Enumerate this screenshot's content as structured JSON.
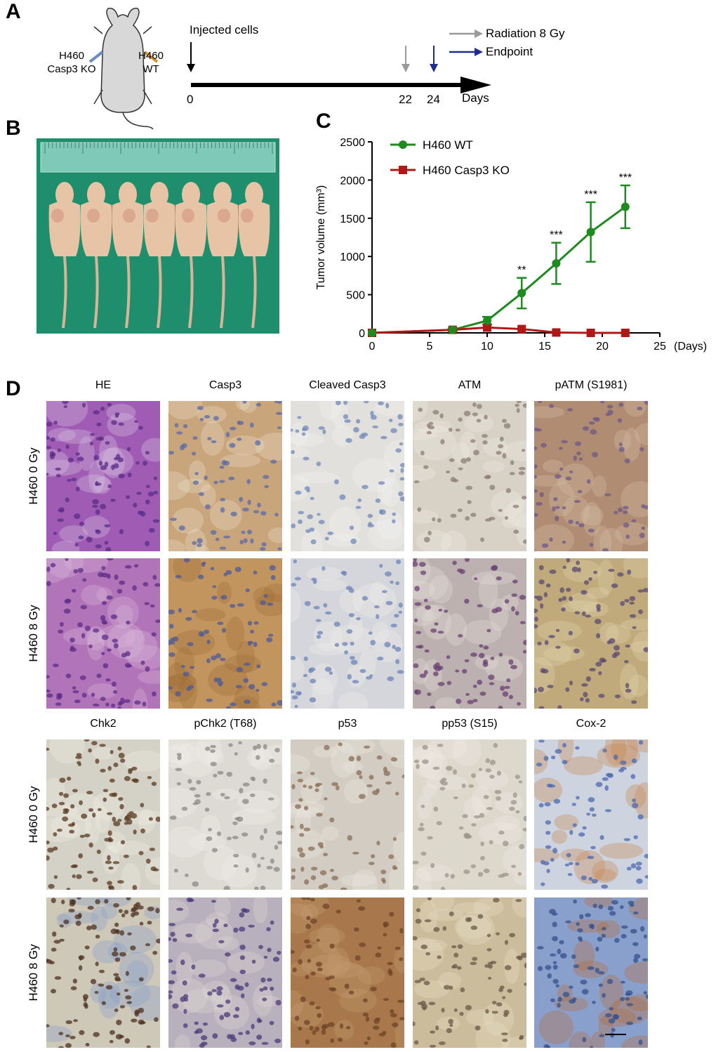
{
  "panels": {
    "a": {
      "letter": "A"
    },
    "b": {
      "letter": "B"
    },
    "c": {
      "letter": "C"
    },
    "d": {
      "letter": "D"
    }
  },
  "timeline": {
    "injected_label": "Injected cells",
    "ticks": [
      "0",
      "22",
      "24"
    ],
    "days_label": "Days",
    "legend": [
      {
        "label": "Radiation 8 Gy",
        "color": "#9a9a9a"
      },
      {
        "label": "Endpoint",
        "color": "#1f2e8c"
      }
    ],
    "mouse_left_label": [
      "H460",
      "Casp3 KO"
    ],
    "mouse_right_label": [
      "H460",
      "WT"
    ]
  },
  "photo_b": {
    "ruler_color": "#7fc9b9",
    "background_color": "#1f8e6c",
    "mouse_color": "#e8c4a6",
    "mouse_count": 7
  },
  "chart_data": {
    "type": "line",
    "xlabel": "(Days)",
    "ylabel": "Tumor volume (mm³)",
    "xlim": [
      0,
      25
    ],
    "ylim": [
      0,
      2500
    ],
    "xticks": [
      "0",
      "5",
      "10",
      "15",
      "20",
      "25"
    ],
    "yticks": [
      "0",
      "500",
      "1000",
      "1500",
      "2000",
      "2500"
    ],
    "legend_position": "top-left",
    "series": [
      {
        "name": "H460 WT",
        "color": "#1f8a1f",
        "marker": "circle",
        "x": [
          0,
          7,
          10,
          13,
          16,
          19,
          22
        ],
        "y": [
          0,
          40,
          160,
          520,
          910,
          1320,
          1650
        ],
        "err": [
          0,
          20,
          50,
          200,
          270,
          390,
          280
        ]
      },
      {
        "name": "H460 Casp3 KO",
        "color": "#b01818",
        "marker": "square",
        "x": [
          0,
          7,
          10,
          13,
          16,
          19,
          22
        ],
        "y": [
          0,
          40,
          70,
          50,
          5,
          0,
          0
        ],
        "err": [
          0,
          0,
          0,
          0,
          0,
          0,
          0
        ]
      }
    ],
    "annotations": [
      {
        "x": 13,
        "text": "**"
      },
      {
        "x": 16,
        "text": "***"
      },
      {
        "x": 19,
        "text": "***"
      },
      {
        "x": 22,
        "text": "***"
      }
    ]
  },
  "histology": {
    "top": {
      "columns": [
        "HE",
        "Casp3",
        "Cleaved Casp3",
        "ATM",
        "pATM (S1981)"
      ],
      "rows": [
        "H460 0 Gy",
        "H460 8 Gy"
      ]
    },
    "bottom": {
      "columns": [
        "Chk2",
        "pChk2 (T68)",
        "p53",
        "pp53 (S15)",
        "Cox-2"
      ],
      "rows": [
        "H460 0 Gy",
        "H460 8 Gy"
      ]
    },
    "tiles": [
      {
        "bg": "#a05cb4",
        "nuc": "#5a2c88",
        "hi": "#d8c0e0",
        "density": 90
      },
      {
        "bg": "#c9a57c",
        "nuc": "#5a6aa8",
        "hi": "#e8dcc8",
        "density": 70
      },
      {
        "bg": "#e2e0dc",
        "nuc": "#7088b8",
        "hi": "#f2f2f0",
        "density": 70
      },
      {
        "bg": "#d8d2c6",
        "nuc": "#8c7c70",
        "hi": "#eeeae2",
        "density": 70
      },
      {
        "bg": "#b08c72",
        "nuc": "#6e5a8a",
        "hi": "#d4bca4",
        "density": 70
      },
      {
        "bg": "#b274b8",
        "nuc": "#5c2c88",
        "hi": "#d8b4d8",
        "density": 90
      },
      {
        "bg": "#c2955f",
        "nuc": "#4c5a9a",
        "hi": "#a06c38",
        "density": 75
      },
      {
        "bg": "#d4d6dc",
        "nuc": "#6c84b8",
        "hi": "#f0eee8",
        "density": 70
      },
      {
        "bg": "#bcb0b0",
        "nuc": "#6a4070",
        "hi": "#e2dcd8",
        "density": 85
      },
      {
        "bg": "#c0aa7c",
        "nuc": "#5a4a70",
        "hi": "#e0d2ac",
        "density": 85
      },
      {
        "bg": "#d4d2c6",
        "nuc": "#5a3a22",
        "hi": "#eeeae0",
        "density": 110
      },
      {
        "bg": "#dcdad2",
        "nuc": "#8c8884",
        "hi": "#f0eeea",
        "density": 70
      },
      {
        "bg": "#d2ccc2",
        "nuc": "#8a6e56",
        "hi": "#ede8e0",
        "density": 70
      },
      {
        "bg": "#dcd8cc",
        "nuc": "#9c9488",
        "hi": "#f0ece4",
        "density": 70
      },
      {
        "bg": "#cdd4e0",
        "nuc": "#4b68b0",
        "hi": "#c88850",
        "density": 70
      },
      {
        "bg": "#cec8b8",
        "nuc": "#4e3220",
        "hi": "#8aa0c8",
        "density": 110
      },
      {
        "bg": "#b8b0bc",
        "nuc": "#4a3a78",
        "hi": "#ded8d4",
        "density": 90
      },
      {
        "bg": "#a8784c",
        "nuc": "#6e4426",
        "hi": "#c49a70",
        "density": 80
      },
      {
        "bg": "#cbbd9c",
        "nuc": "#6a5a48",
        "hi": "#e4dcc4",
        "density": 80
      },
      {
        "bg": "#8aa0cc",
        "nuc": "#34508c",
        "hi": "#b46e3a",
        "density": 90
      }
    ]
  }
}
